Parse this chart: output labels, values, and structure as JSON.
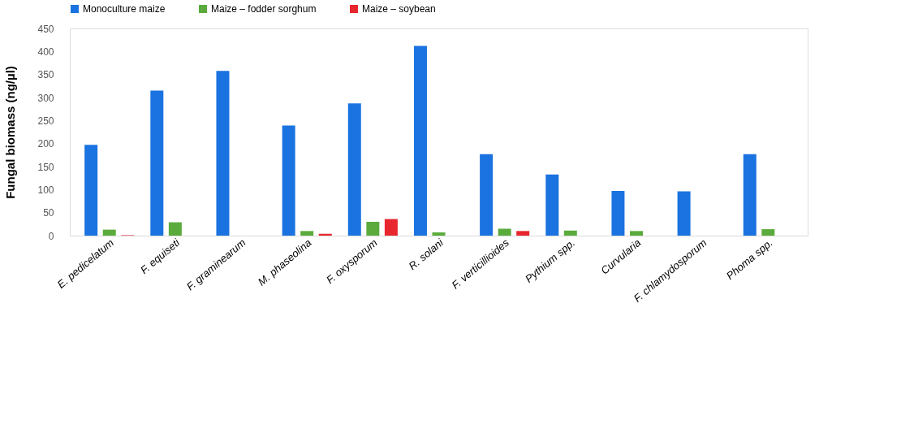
{
  "chart_data": {
    "type": "bar",
    "ylabel": "Fungal biomass (ng/µl)",
    "categories": [
      "E. pedicelatum",
      "F. equiseti",
      "F. graminearum",
      "M. phaseolina",
      "F. oxysporum",
      "R. solani",
      "F. verticillioides",
      "Pythium spp.",
      "Curvularia",
      "F. chlamydosporum",
      "Phoma spp."
    ],
    "series": [
      {
        "name": "Monoculture maize",
        "color": "#1a73e0",
        "values": [
          197,
          315,
          358,
          239,
          287,
          412,
          177,
          133,
          97,
          96,
          177
        ]
      },
      {
        "name": "Maize – fodder sorghum",
        "color": "#5aab3c",
        "values": [
          13,
          29,
          0,
          10,
          30,
          7,
          15,
          11,
          10,
          0,
          14
        ]
      },
      {
        "name": "Maize – soybean",
        "color": "#e8262e",
        "values": [
          1,
          0,
          0,
          4,
          36,
          0,
          10,
          0,
          0,
          0,
          0
        ]
      }
    ],
    "ylim": [
      0,
      450
    ],
    "yticks": [
      0,
      50,
      100,
      150,
      200,
      250,
      300,
      350,
      400,
      450
    ],
    "grid": false,
    "legend": "top"
  }
}
